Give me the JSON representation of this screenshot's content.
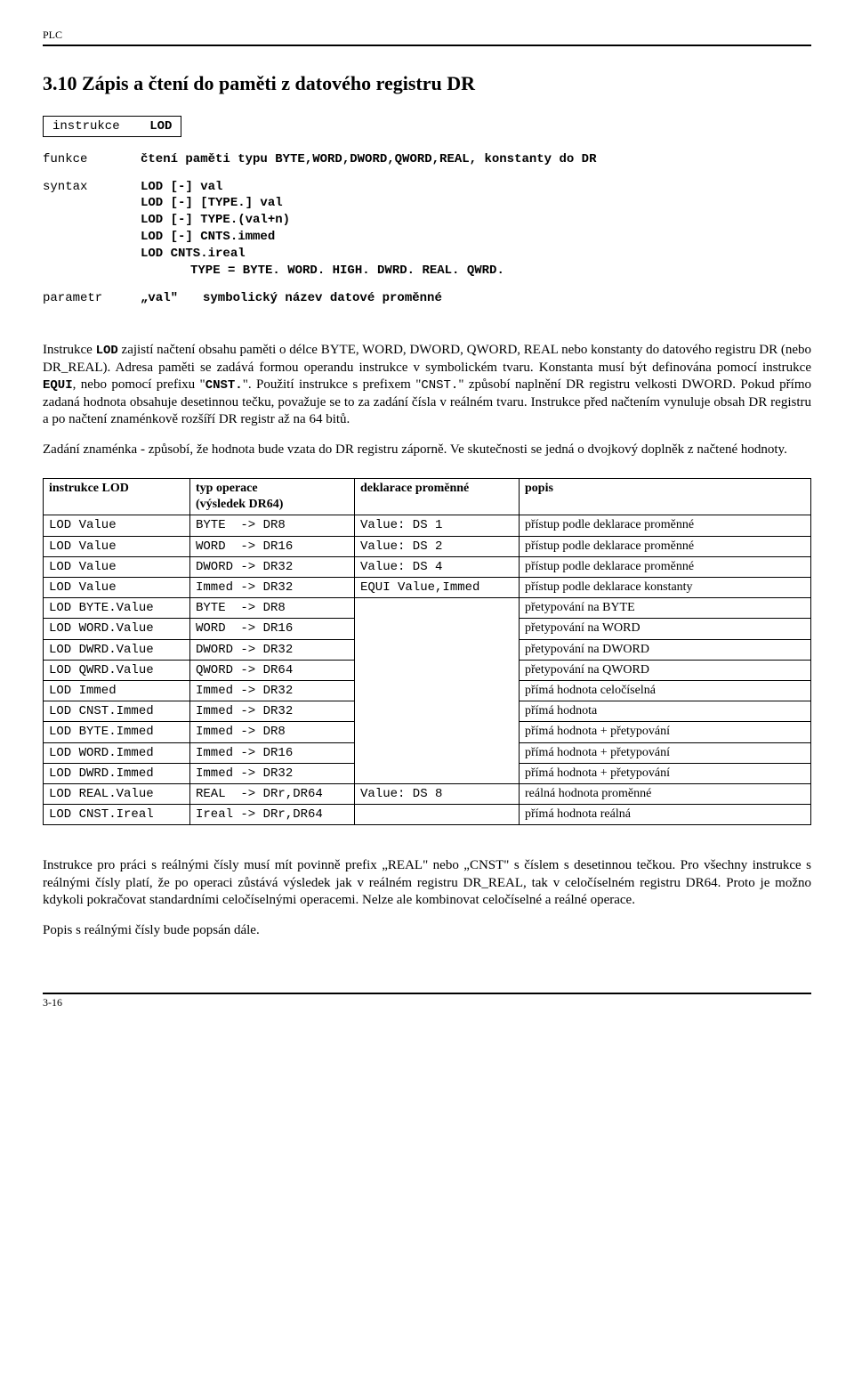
{
  "header": {
    "left": "PLC"
  },
  "section": {
    "title": "3.10  Zápis a čtení do paměti z datového registru DR"
  },
  "instrBox": {
    "label": "instrukce",
    "value": "LOD"
  },
  "defs": {
    "funkce_label": "funkce",
    "funkce_value": "čtení paměti typu BYTE,WORD,DWORD,QWORD,REAL, konstanty do DR",
    "syntax_label": "syntax",
    "syntax_lines": [
      "LOD  [-] val",
      "LOD  [-] [TYPE.] val",
      "LOD  [-] TYPE.(val+n)",
      "LOD  [-] CNTS.immed",
      "LOD      CNTS.ireal",
      "TYPE = BYTE. WORD. HIGH. DWRD. REAL. QWRD."
    ],
    "param_label": "parametr",
    "param_name": "„val\"",
    "param_desc": "symbolický název datové proměnné"
  },
  "paras": {
    "p1_a": "Instrukce ",
    "p1_code": "LOD",
    "p1_b": " zajistí načtení obsahu paměti o délce BYTE, WORD, DWORD, QWORD, REAL nebo konstanty do  datového registru DR (nebo DR_REAL). Adresa paměti se zadává formou operandu instrukce v symbolickém tvaru. Konstanta musí být definována pomocí instrukce ",
    "p1_code2": "EQUI",
    "p1_c": ", nebo pomocí prefixu \"",
    "p1_code3": "CNST.",
    "p1_d": "\". Použití instrukce s  prefixem \"",
    "p1_code4": "CNST.",
    "p1_e": "\" způsobí naplnění DR registru velkosti DWORD. Pokud přímo zadaná hodnota obsahuje desetinnou tečku, považuje se to za zadání čísla v reálném tvaru.  Instrukce před načtením vynuluje obsah DR registru a po načtení znaménkově rozšíří DR registr až na 64 bitů.",
    "p2": "Zadání znaménka - způsobí, že hodnota bude vzata do DR registru záporně. Ve skutečnosti se jedná o  dvojkový doplněk z načtené hodnoty."
  },
  "table": {
    "headers": [
      "instrukce LOD",
      "typ operace\n(výsledek DR64)",
      "deklarace proměnné",
      "popis"
    ],
    "rows": [
      [
        "LOD Value",
        "BYTE  -> DR8",
        "Value: DS 1",
        "přístup podle deklarace proměnné"
      ],
      [
        "LOD Value",
        "WORD  -> DR16",
        "Value: DS 2",
        "přístup podle deklarace proměnné"
      ],
      [
        "LOD Value",
        "DWORD -> DR32",
        "Value: DS 4",
        "přístup podle deklarace proměnné"
      ],
      [
        "LOD Value",
        "Immed -> DR32",
        "EQUI Value,Immed",
        "přístup podle deklarace konstanty"
      ],
      [
        "LOD BYTE.Value",
        "BYTE  -> DR8",
        "",
        "přetypování na BYTE"
      ],
      [
        "LOD WORD.Value",
        "WORD  -> DR16",
        "",
        "přetypování na WORD"
      ],
      [
        "LOD DWRD.Value",
        "DWORD -> DR32",
        "",
        "přetypování na DWORD"
      ],
      [
        "LOD QWRD.Value",
        "QWORD -> DR64",
        "",
        "přetypování na QWORD"
      ],
      [
        "LOD Immed",
        "Immed -> DR32",
        "",
        "přímá hodnota celočíselná"
      ],
      [
        "LOD CNST.Immed",
        "Immed -> DR32",
        "",
        "přímá hodnota"
      ],
      [
        "LOD BYTE.Immed",
        "Immed -> DR8",
        "",
        "přímá hodnota + přetypování"
      ],
      [
        "LOD WORD.Immed",
        "Immed -> DR16",
        "",
        "přímá hodnota + přetypování"
      ],
      [
        "LOD DWRD.Immed",
        "Immed -> DR32",
        "",
        "přímá hodnota + přetypování"
      ],
      [
        "LOD REAL.Value",
        "REAL  -> DRr,DR64",
        "Value: DS 8",
        "reálná hodnota proměnné"
      ],
      [
        "LOD CNST.Ireal",
        "Ireal -> DRr,DR64",
        "",
        "přímá hodnota reálná"
      ]
    ],
    "col_widths": [
      "160px",
      "180px",
      "180px",
      "auto"
    ]
  },
  "paras2": {
    "p3": "Instrukce pro práci s reálnými čísly musí mít povinně prefix „REAL\"  nebo „CNST\" s číslem s desetinnou tečkou. Pro všechny instrukce s reálnými čísly platí, že po operaci zůstává výsledek jak v reálném registru DR_REAL, tak v celočíselném registru DR64. Proto je možno kdykoli pokračovat standardními celočíselnými operacemi. Nelze ale kombinovat celočíselné a reálné operace.",
    "p4": "Popis s reálnými čísly bude popsán dále."
  },
  "footer": {
    "text": "3-16"
  },
  "style": {
    "body_font": "Times New Roman",
    "mono_font": "Courier New",
    "body_fontsize": 15,
    "mono_fontsize": 14,
    "rule_color": "#000000",
    "background": "#ffffff"
  }
}
